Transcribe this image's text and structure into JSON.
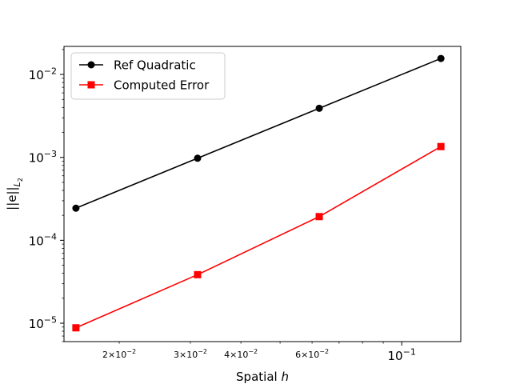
{
  "chart_data": {
    "type": "line",
    "xscale": "log",
    "yscale": "log",
    "xlabel": "Spatial h",
    "ylabel": "||e||_{L_2}",
    "xlim": [
      0.0146,
      0.14
    ],
    "ylim": [
      6e-06,
      0.0218
    ],
    "grid": false,
    "legend_position": "top-left",
    "x": [
      0.015625,
      0.03125,
      0.0625,
      0.125
    ],
    "series": [
      {
        "name": "Ref Quadratic",
        "color": "#000000",
        "marker": "circle",
        "values": [
          0.000244,
          0.000977,
          0.00391,
          0.0156
        ]
      },
      {
        "name": "Computed Error",
        "color": "#ff0000",
        "marker": "square",
        "values": [
          8.8e-06,
          3.85e-05,
          0.000193,
          0.00135
        ]
      }
    ],
    "x_major_ticks": [
      {
        "value": 0.1,
        "mant": "10",
        "exp": "−1"
      }
    ],
    "x_minor_labeled_ticks": [
      {
        "value": 0.02,
        "mant": "2×10",
        "exp": "−2"
      },
      {
        "value": 0.03,
        "mant": "3×10",
        "exp": "−2"
      },
      {
        "value": 0.04,
        "mant": "4×10",
        "exp": "−2"
      },
      {
        "value": 0.06,
        "mant": "6×10",
        "exp": "−2"
      }
    ],
    "y_major_ticks": [
      {
        "value": 1e-05,
        "mant": "10",
        "exp": "−5"
      },
      {
        "value": 0.0001,
        "mant": "10",
        "exp": "−4"
      },
      {
        "value": 0.001,
        "mant": "10",
        "exp": "−3"
      },
      {
        "value": 0.01,
        "mant": "10",
        "exp": "−2"
      }
    ]
  }
}
